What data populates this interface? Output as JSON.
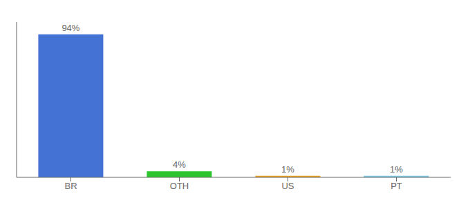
{
  "chart_data": {
    "type": "bar",
    "categories": [
      "BR",
      "OTH",
      "US",
      "PT"
    ],
    "values": [
      94,
      4,
      1,
      1
    ],
    "value_labels": [
      "94%",
      "4%",
      "1%",
      "1%"
    ],
    "data_labels": true,
    "colors": [
      "#4472d4",
      "#2dc52d",
      "#e8a020",
      "#7ec8e3"
    ],
    "ylim": [
      0,
      102
    ],
    "grid": false,
    "tick_labels": "x"
  }
}
